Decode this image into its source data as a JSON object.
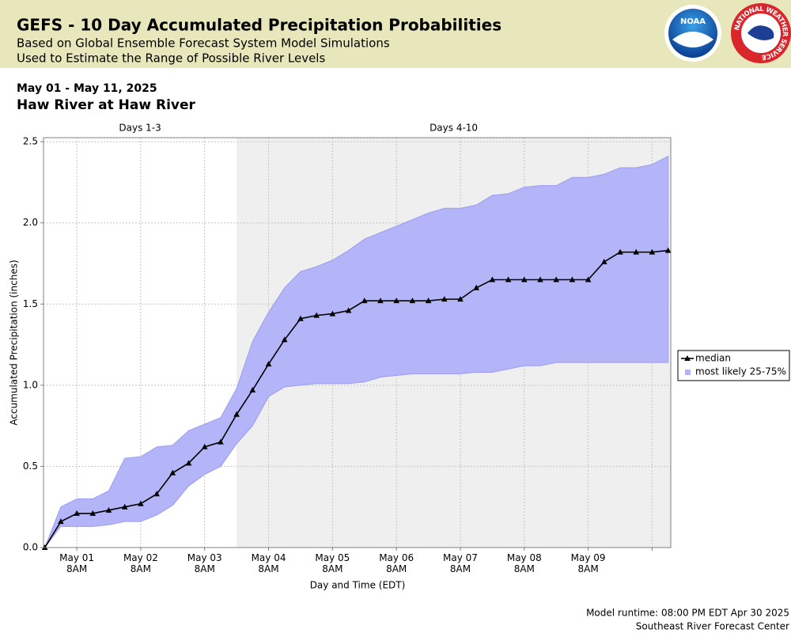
{
  "chart_data": {
    "type": "line",
    "title": "GEFS - 10 Day Accumulated Precipitation Probabilities",
    "subtitle": [
      "Based on Global Ensemble Forecast System Model Simulations",
      "Used to Estimate the Range of Possible River Levels"
    ],
    "date_range": "May 01 - May 11, 2025",
    "station": "Haw River at Haw River",
    "logos": [
      "NOAA",
      "NATIONAL WEATHER SERVICE"
    ],
    "footer": [
      "Model runtime: 08:00 PM EDT Apr 30 2025",
      "Southeast River Forecast Center"
    ],
    "x_label": "Day and Time (EDT)",
    "y_label": "Accumulated Precipitation (inches)",
    "region_split": "2025-05-03T20:00",
    "region_labels": [
      "Days 1-3",
      "Days 4-10"
    ],
    "region_shade": "#efefef",
    "grid": true,
    "legend": "right",
    "xlim": [
      "2025-04-30T19:30",
      "2025-05-10T15:00"
    ],
    "xticks": [
      {
        "value": "2025-05-01T08:00",
        "label": "May 01\n8AM"
      },
      {
        "value": "2025-05-02T08:00",
        "label": "May 02\n8AM"
      },
      {
        "value": "2025-05-03T08:00",
        "label": "May 03\n8AM"
      },
      {
        "value": "2025-05-04T08:00",
        "label": "May 04\n8AM"
      },
      {
        "value": "2025-05-05T08:00",
        "label": "May 05\n8AM"
      },
      {
        "value": "2025-05-06T08:00",
        "label": "May 06\n8AM"
      },
      {
        "value": "2025-05-07T08:00",
        "label": "May 07\n8AM"
      },
      {
        "value": "2025-05-08T08:00",
        "label": "May 08\n8AM"
      },
      {
        "value": "2025-05-09T08:00",
        "label": "May 09\n8AM"
      },
      {
        "value": "2025-05-10T08:00",
        "label": null
      }
    ],
    "ylim": [
      0,
      2.525
    ],
    "yticks": [
      {
        "value": 0,
        "label": "0.0"
      },
      0.5,
      {
        "value": 1,
        "label": "1.0"
      },
      1.5,
      {
        "value": 2,
        "label": "2.0"
      },
      2.5
    ],
    "x": [
      "2025-04-30T20:00",
      "2025-05-01T02:00",
      "2025-05-01T08:00",
      "2025-05-01T14:00",
      "2025-05-01T20:00",
      "2025-05-02T02:00",
      "2025-05-02T08:00",
      "2025-05-02T14:00",
      "2025-05-02T20:00",
      "2025-05-03T02:00",
      "2025-05-03T08:00",
      "2025-05-03T14:00",
      "2025-05-03T20:00",
      "2025-05-04T02:00",
      "2025-05-04T08:00",
      "2025-05-04T14:00",
      "2025-05-04T20:00",
      "2025-05-05T02:00",
      "2025-05-05T08:00",
      "2025-05-05T14:00",
      "2025-05-05T20:00",
      "2025-05-06T02:00",
      "2025-05-06T08:00",
      "2025-05-06T14:00",
      "2025-05-06T20:00",
      "2025-05-07T02:00",
      "2025-05-07T08:00",
      "2025-05-07T14:00",
      "2025-05-07T20:00",
      "2025-05-08T02:00",
      "2025-05-08T08:00",
      "2025-05-08T14:00",
      "2025-05-08T20:00",
      "2025-05-09T02:00",
      "2025-05-09T08:00",
      "2025-05-09T14:00",
      "2025-05-09T20:00",
      "2025-05-10T02:00",
      "2025-05-10T08:00",
      "2025-05-10T14:00"
    ],
    "series": [
      {
        "name": "median",
        "color": "#000000",
        "marker": "triangle",
        "values": [
          0,
          0.16,
          0.21,
          0.21,
          0.23,
          0.25,
          0.27,
          0.33,
          0.46,
          0.52,
          0.62,
          0.65,
          0.82,
          0.97,
          1.13,
          1.28,
          1.41,
          1.43,
          1.44,
          1.46,
          1.52,
          1.52,
          1.52,
          1.52,
          1.52,
          1.53,
          1.53,
          1.6,
          1.65,
          1.65,
          1.65,
          1.65,
          1.65,
          1.65,
          1.65,
          1.76,
          1.82,
          1.82,
          1.82,
          1.83
        ]
      },
      {
        "name": "most likely 25-75%",
        "color": "#b4b4f8",
        "type": "band",
        "upper": [
          0,
          0.25,
          0.3,
          0.3,
          0.35,
          0.55,
          0.56,
          0.62,
          0.63,
          0.72,
          0.76,
          0.8,
          0.98,
          1.27,
          1.45,
          1.6,
          1.7,
          1.73,
          1.77,
          1.83,
          1.9,
          1.94,
          1.98,
          2.02,
          2.06,
          2.09,
          2.09,
          2.11,
          2.17,
          2.18,
          2.22,
          2.23,
          2.23,
          2.28,
          2.28,
          2.3,
          2.34,
          2.34,
          2.36,
          2.41
        ],
        "lower": [
          0,
          0.13,
          0.13,
          0.13,
          0.14,
          0.16,
          0.16,
          0.2,
          0.26,
          0.38,
          0.45,
          0.5,
          0.64,
          0.75,
          0.93,
          0.99,
          1,
          1.01,
          1.01,
          1.01,
          1.02,
          1.05,
          1.06,
          1.07,
          1.07,
          1.07,
          1.07,
          1.08,
          1.08,
          1.1,
          1.12,
          1.12,
          1.14,
          1.14,
          1.14,
          1.14,
          1.14,
          1.14,
          1.14,
          1.14
        ]
      }
    ]
  }
}
